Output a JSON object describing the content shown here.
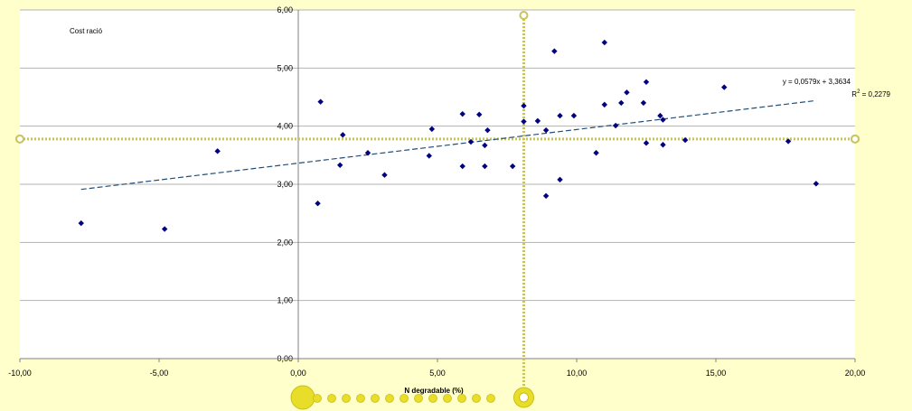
{
  "chart_data": {
    "type": "scatter",
    "title": "Cost ració",
    "xlabel": "N degradable (%)",
    "ylabel": "",
    "xlim": [
      -10,
      20
    ],
    "ylim": [
      0,
      6
    ],
    "x_ticks": [
      "-10,00",
      "-5,00",
      "0,00",
      "5,00",
      "10,00",
      "15,00",
      "20,00"
    ],
    "y_ticks": [
      "0,00",
      "1,00",
      "2,00",
      "3,00",
      "4,00",
      "5,00",
      "6,00"
    ],
    "grid": true,
    "points": [
      [
        -7.8,
        2.33
      ],
      [
        -4.8,
        2.23
      ],
      [
        -2.9,
        3.57
      ],
      [
        0.7,
        2.67
      ],
      [
        0.8,
        4.42
      ],
      [
        1.5,
        3.33
      ],
      [
        1.6,
        3.85
      ],
      [
        2.5,
        3.54
      ],
      [
        3.1,
        3.16
      ],
      [
        4.7,
        3.49
      ],
      [
        4.8,
        3.95
      ],
      [
        5.9,
        4.21
      ],
      [
        5.9,
        3.31
      ],
      [
        6.2,
        3.73
      ],
      [
        6.5,
        4.2
      ],
      [
        6.7,
        3.67
      ],
      [
        6.7,
        3.31
      ],
      [
        6.8,
        3.93
      ],
      [
        7.7,
        3.31
      ],
      [
        8.1,
        4.35
      ],
      [
        8.1,
        4.08
      ],
      [
        8.6,
        4.09
      ],
      [
        8.9,
        3.93
      ],
      [
        8.9,
        2.8
      ],
      [
        9.2,
        5.29
      ],
      [
        9.4,
        4.18
      ],
      [
        9.4,
        3.08
      ],
      [
        9.9,
        4.18
      ],
      [
        10.7,
        3.54
      ],
      [
        11.0,
        5.44
      ],
      [
        11.0,
        4.37
      ],
      [
        11.4,
        4.01
      ],
      [
        11.6,
        4.4
      ],
      [
        11.8,
        4.58
      ],
      [
        12.4,
        4.4
      ],
      [
        12.5,
        4.76
      ],
      [
        12.5,
        3.71
      ],
      [
        13.0,
        4.18
      ],
      [
        13.1,
        4.11
      ],
      [
        13.1,
        3.68
      ],
      [
        13.9,
        3.76
      ],
      [
        15.3,
        4.67
      ],
      [
        17.6,
        3.74
      ],
      [
        18.6,
        3.01
      ]
    ],
    "trendline": {
      "slope": 0.0579,
      "intercept": 3.3634,
      "x_range": [
        -7.8,
        18.6
      ],
      "equation": "y = 0,0579x + 3,3634",
      "r2_label": "R",
      "r2_sup": "2",
      "r2_value": " = 0,2279"
    },
    "reference_lines": {
      "x": 8.1,
      "y": 3.78
    },
    "colors": {
      "background": "#ffffcc",
      "plot_area": "#ffffff",
      "points": "#000080",
      "trendline": "#1f4e79",
      "reference": "#c8c35a",
      "grid": "#b3b3b3"
    }
  }
}
